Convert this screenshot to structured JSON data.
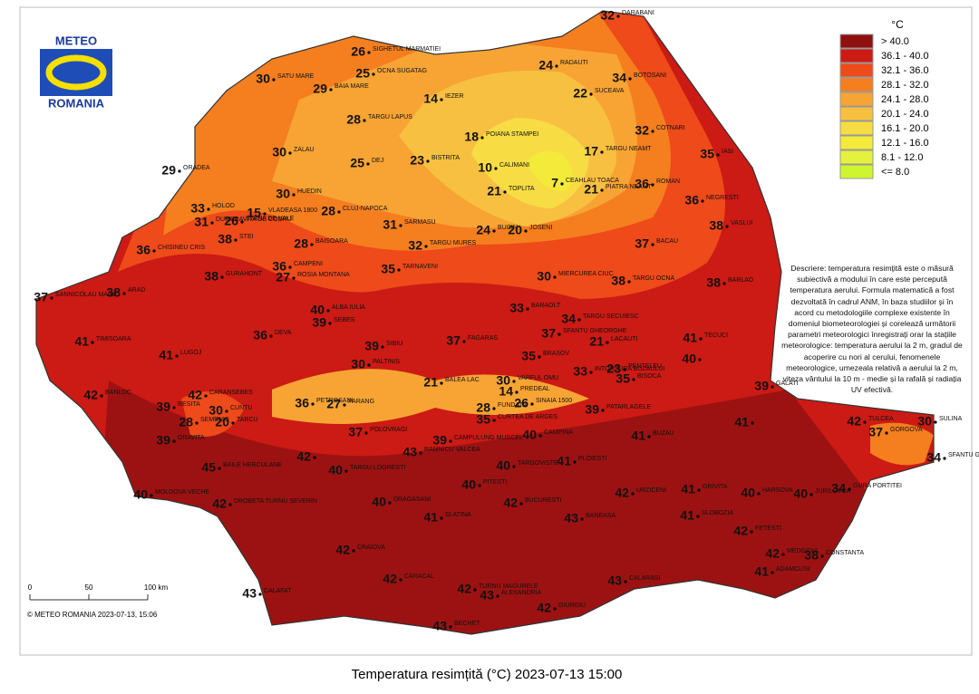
{
  "logo": {
    "top": "METEO",
    "bottom": "ROMANIA"
  },
  "title": "Temperatura resimțită (°C) 2023-07-13 15:00",
  "legend": {
    "unit": "°C",
    "items": [
      {
        "label": "> 40.0",
        "color": "#8e1010"
      },
      {
        "label": "36.1 - 40.0",
        "color": "#cc1a14"
      },
      {
        "label": "32.1 - 36.0",
        "color": "#ee4a1a"
      },
      {
        "label": "28.1 - 32.0",
        "color": "#f57e1f"
      },
      {
        "label": "24.1 - 28.0",
        "color": "#f7a434"
      },
      {
        "label": "20.1 - 24.0",
        "color": "#f8c041"
      },
      {
        "label": "16.1 - 20.0",
        "color": "#f7dc43"
      },
      {
        "label": "12.1 - 16.0",
        "color": "#f3ea3a"
      },
      {
        "label": "8.1 - 12.0",
        "color": "#e4f23b"
      },
      {
        "label": "<= 8.0",
        "color": "#cff52f"
      }
    ]
  },
  "description": "Descriere: temperatura resimțită este o măsură subiectivă a modului în care este percepută temperatura aerului. Formula matematică a fost dezvoltată în cadrul ANM, în baza studiilor și în acord cu metodologiile complexe existente în domeniul biometeorologiei și corelează următorii parametri meteorologici înregistrați orar la stațiile meteorologice: temperatura aerului la 2 m, gradul de acoperire cu nori al cerului, fenomenele meteorologice, umezeala relativă a aerului la 2 m, viteza vântului la 10 m - medie și la rafală și radiația UV efectivă.",
  "scale": {
    "labels": [
      "0",
      "50",
      "100 km"
    ]
  },
  "copyright": "© METEO ROMANIA 2023-07-13, 15:06",
  "stations": [
    {
      "value": 32,
      "name": "DARABANI"
    },
    {
      "value": 26,
      "name": "SIGHETUL MARMATIEI"
    },
    {
      "value": 25,
      "name": "OCNA SUGATAG"
    },
    {
      "value": 30,
      "name": "SATU MARE"
    },
    {
      "value": 29,
      "name": "BAIA MARE"
    },
    {
      "value": 24,
      "name": "RADAUTI"
    },
    {
      "value": 34,
      "name": "BOTOSANI"
    },
    {
      "value": 14,
      "name": "IEZER"
    },
    {
      "value": 22,
      "name": "SUCEAVA"
    },
    {
      "value": 28,
      "name": "TARGU LAPUS"
    },
    {
      "value": 18,
      "name": "POIANA STAMPEI"
    },
    {
      "value": 32,
      "name": "COTNARI"
    },
    {
      "value": 30,
      "name": "ZALAU"
    },
    {
      "value": 25,
      "name": "DEJ"
    },
    {
      "value": 23,
      "name": "BISTRITA"
    },
    {
      "value": 10,
      "name": "CALIMANI"
    },
    {
      "value": 17,
      "name": "TARGU NEAMT"
    },
    {
      "value": 35,
      "name": "IASI"
    },
    {
      "value": 29,
      "name": "ORADEA"
    },
    {
      "value": 7,
      "name": "CEAHLAU TOACA"
    },
    {
      "value": 21,
      "name": "TOPLITA"
    },
    {
      "value": 21,
      "name": "PIATRA NEAMT"
    },
    {
      "value": 36,
      "name": "ROMAN"
    },
    {
      "value": 36,
      "name": "NEGRESTI"
    },
    {
      "value": 30,
      "name": "HUEDIN"
    },
    {
      "value": 15,
      "name": "VLADEASA 1800"
    },
    {
      "value": 33,
      "name": "HOLOD"
    },
    {
      "value": 31,
      "name": "DUMBRAVITA DE CODRU"
    },
    {
      "value": 26,
      "name": "STANA DE VALE"
    },
    {
      "value": 28,
      "name": "CLUJ-NAPOCA"
    },
    {
      "value": 31,
      "name": "SARMASU"
    },
    {
      "value": 24,
      "name": "BUCIN"
    },
    {
      "value": 20,
      "name": "JOSENI"
    },
    {
      "value": 38,
      "name": "VASLUI"
    },
    {
      "value": 36,
      "name": "CHISINEU CRIS"
    },
    {
      "value": 38,
      "name": "STEI"
    },
    {
      "value": 28,
      "name": "BAISOARA"
    },
    {
      "value": 32,
      "name": "TARGU MURES"
    },
    {
      "value": 37,
      "name": "BACAU"
    },
    {
      "value": 38,
      "name": "GURAHONT"
    },
    {
      "value": 36,
      "name": "CAMPENI"
    },
    {
      "value": 27,
      "name": "ROSIA MONTANA"
    },
    {
      "value": 35,
      "name": "TARNAVENI"
    },
    {
      "value": 30,
      "name": "MIERCUREA CIUC"
    },
    {
      "value": 38,
      "name": "TARGU OCNA"
    },
    {
      "value": 38,
      "name": "BARLAD"
    },
    {
      "value": 37,
      "name": "SANNICOLAU MARE"
    },
    {
      "value": 38,
      "name": "ARAD"
    },
    {
      "value": 40,
      "name": "ALBA IULIA"
    },
    {
      "value": 39,
      "name": "SEBES"
    },
    {
      "value": 33,
      "name": "BARAOLT"
    },
    {
      "value": 34,
      "name": "TARGU SECUIESC"
    },
    {
      "value": 37,
      "name": "SFANTU GHEORGHE"
    },
    {
      "value": 36,
      "name": "DEVA"
    },
    {
      "value": 39,
      "name": "SIBIU"
    },
    {
      "value": 37,
      "name": "FAGARAS"
    },
    {
      "value": 41,
      "name": "TIMISOARA"
    },
    {
      "value": 41,
      "name": "TECUCI"
    },
    {
      "value": 21,
      "name": "LACAUTI"
    },
    {
      "value": 35,
      "name": "BRASOV"
    },
    {
      "value": 41,
      "name": "LUGOJ"
    },
    {
      "value": 40
    },
    {
      "value": 30,
      "name": "PALTINIS"
    },
    {
      "value": 33,
      "name": "INTORSURA BUZAULUI"
    },
    {
      "value": 23,
      "name": "PENTELEU"
    },
    {
      "value": 35,
      "name": "BISOCA"
    },
    {
      "value": 21,
      "name": "BALEA LAC"
    },
    {
      "value": 30,
      "name": "VARFUL OMU"
    },
    {
      "value": 14,
      "name": "PREDEAL"
    },
    {
      "value": 42,
      "name": "BANLOC"
    },
    {
      "value": 42,
      "name": "CARANSEBES"
    },
    {
      "value": 39,
      "name": "GALATI"
    },
    {
      "value": 36,
      "name": "PETROSANI"
    },
    {
      "value": 27,
      "name": "PARANG"
    },
    {
      "value": 28,
      "name": "FUNDATA"
    },
    {
      "value": 26,
      "name": "SINAIA 1500"
    },
    {
      "value": 39,
      "name": "PATARLAGELE"
    },
    {
      "value": 39,
      "name": "RESITA"
    },
    {
      "value": 30,
      "name": "CUNTU"
    },
    {
      "value": 20,
      "name": "TARCU"
    },
    {
      "value": 35,
      "name": "CURTEA DE ARGES"
    },
    {
      "value": 28,
      "name": "SEMENIC"
    },
    {
      "value": 37,
      "name": "POLOVRAGI"
    },
    {
      "value": 40,
      "name": "CAMPINA"
    },
    {
      "value": 41,
      "name": "BUZAU"
    },
    {
      "value": 41
    },
    {
      "value": 42,
      "name": "TULCEA"
    },
    {
      "value": 30,
      "name": "SULINA"
    },
    {
      "value": 37,
      "name": "GORGOVA"
    },
    {
      "value": 39,
      "name": "ORAVITA"
    },
    {
      "value": 42
    },
    {
      "value": 45,
      "name": "BAILE HERCULANE"
    },
    {
      "value": 40,
      "name": "TARGU LOGRESTI"
    },
    {
      "value": 43,
      "name": "RAMNICU VALCEA"
    },
    {
      "value": 39,
      "name": "CAMPULUNG MUSCEL"
    },
    {
      "value": 40,
      "name": "TARGOVISTE"
    },
    {
      "value": 41,
      "name": "PLOIESTI"
    },
    {
      "value": 40,
      "name": "PITESTI"
    },
    {
      "value": 42,
      "name": "URZICENI"
    },
    {
      "value": 41,
      "name": "GRIVITA"
    },
    {
      "value": 40,
      "name": "HARSOVA"
    },
    {
      "value": 40,
      "name": "JURILOVCA"
    },
    {
      "value": 34,
      "name": "GURA PORTITEI"
    },
    {
      "value": 34,
      "name": "SFANTU GHEORGHE"
    },
    {
      "value": 42,
      "name": "DROBETA TURNU SEVERIN"
    },
    {
      "value": 40,
      "name": "DRAGASANI"
    },
    {
      "value": 41,
      "name": "SLATINA"
    },
    {
      "value": 42,
      "name": "BUCURESTI"
    },
    {
      "value": 43,
      "name": "BANEASA"
    },
    {
      "value": 41,
      "name": "SLOBOZIA"
    },
    {
      "value": 42,
      "name": "FETESTI"
    },
    {
      "value": 42,
      "name": "MEDGIDIA"
    },
    {
      "value": 38,
      "name": "CONSTANTA"
    },
    {
      "value": 42,
      "name": "CRAIOVA"
    },
    {
      "value": 43,
      "name": "CALARASI"
    },
    {
      "value": 43,
      "name": "CALAFAT"
    },
    {
      "value": 42,
      "name": "CARACAL"
    },
    {
      "value": 42,
      "name": "TURNU MAGURELE"
    },
    {
      "value": 43,
      "name": "ALEXANDRIA"
    },
    {
      "value": 42,
      "name": "GIURGIU"
    },
    {
      "value": 41,
      "name": "ADAMCLISI"
    },
    {
      "value": 43,
      "name": "BECHET"
    },
    {
      "value": 40,
      "name": "MOLDOVA VECHE"
    }
  ]
}
